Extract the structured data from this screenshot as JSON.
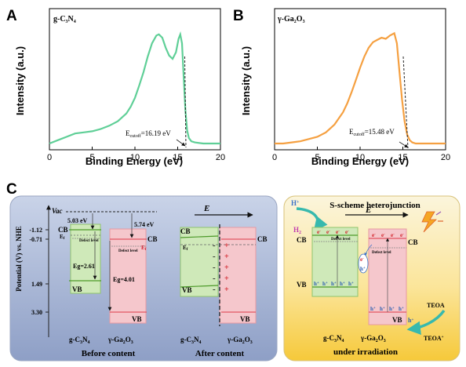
{
  "chart_data": [
    {
      "type": "line",
      "panel": "A",
      "material": "g-C₃N₄",
      "xlabel": "Binding Energy (eV)",
      "ylabel": "Intensity (a.u.)",
      "xlim": [
        0,
        20
      ],
      "xticks": [
        "0",
        "5",
        "10",
        "15",
        "20"
      ],
      "color": "#5fcf97",
      "annotation": "Ecutoff=16.19 eV",
      "annotation_main": "E",
      "annotation_sub": "cutoff",
      "annotation_value": "=16.19 eV",
      "x": [
        0.0,
        1.0,
        2.0,
        3.0,
        4.0,
        5.0,
        6.0,
        7.0,
        8.0,
        9.0,
        9.5,
        10.0,
        10.5,
        11.0,
        11.5,
        12.0,
        12.5,
        12.8,
        13.2,
        13.6,
        14.0,
        14.4,
        14.8,
        15.1,
        15.3,
        15.5,
        15.7,
        15.9,
        16.1,
        16.3,
        16.6,
        17.0,
        18.0,
        19.0,
        20.0
      ],
      "y": [
        0.0,
        0.03,
        0.06,
        0.09,
        0.1,
        0.11,
        0.13,
        0.16,
        0.2,
        0.27,
        0.33,
        0.41,
        0.52,
        0.64,
        0.78,
        0.9,
        0.97,
        0.98,
        0.95,
        0.86,
        0.79,
        0.76,
        0.82,
        0.94,
        0.98,
        0.9,
        0.6,
        0.3,
        0.12,
        0.05,
        0.02,
        0.01,
        0.0,
        0.0,
        0.0
      ]
    },
    {
      "type": "line",
      "panel": "B",
      "material": "γ-Ga₂O₃",
      "xlabel": "Binding Energy (eV)",
      "ylabel": "Intensity (a.u.)",
      "xlim": [
        0,
        20
      ],
      "xticks": [
        "0",
        "5",
        "10",
        "15",
        "20"
      ],
      "color": "#f5a041",
      "annotation": "Ecutoff=15.48 eV",
      "annotation_main": "E",
      "annotation_sub": "cutoff",
      "annotation_value": "=15.48 eV",
      "x": [
        0.0,
        1.0,
        2.0,
        3.0,
        4.0,
        5.0,
        6.0,
        7.0,
        8.0,
        8.5,
        9.0,
        9.5,
        10.0,
        10.5,
        11.0,
        11.5,
        12.0,
        12.5,
        13.0,
        13.5,
        14.0,
        14.3,
        14.6,
        14.9,
        15.2,
        15.5,
        15.8,
        16.1,
        16.5,
        17.0,
        18.0,
        19.0,
        20.0
      ],
      "y": [
        0.0,
        0.0,
        0.01,
        0.02,
        0.04,
        0.06,
        0.1,
        0.17,
        0.28,
        0.36,
        0.46,
        0.57,
        0.68,
        0.78,
        0.86,
        0.91,
        0.93,
        0.95,
        0.94,
        0.97,
        0.99,
        0.9,
        0.65,
        0.4,
        0.2,
        0.08,
        0.03,
        0.01,
        0.0,
        0.0,
        0.0,
        0.0,
        0.0
      ]
    }
  ],
  "panel_c": {
    "letter": "C",
    "ylabel": "Potential (V)  vs. NHE",
    "vac": "Vac",
    "levels": [
      "-1.12",
      "-0.71",
      "1.49",
      "3.30"
    ],
    "gcn_wf": "5.03 eV",
    "ga_wf": "5.74 eV",
    "gcn_eg": "Eg=2.61",
    "ga_eg": "Eg=4.01",
    "cb": "CB",
    "vb": "VB",
    "ef": "E",
    "ef_sub": "f",
    "defect": "Defect level",
    "gcn_label": "g-C",
    "gcn_sub1": "3",
    "gcn_n": "N",
    "gcn_sub2": "4",
    "ga_label": "γ-Ga",
    "ga_sub1": "2",
    "ga_o": "O",
    "ga_sub2": "3",
    "before_caption": "Before content",
    "after_caption": "After content",
    "e_field": "E",
    "plus": "+",
    "minus": "-",
    "heterojunction_title": "S-scheme heterojunction",
    "h_plus": "H",
    "h_plus_sup": "+",
    "h2": "H",
    "h2_sub": "2",
    "electron": "e",
    "electron_sup": "-",
    "hole": "h",
    "hole_sup": "+",
    "teoa": "TEOA",
    "teoa_plus": "TEOA",
    "teoa_plus_sup": "+",
    "irradiation_caption": "under irradiation"
  }
}
